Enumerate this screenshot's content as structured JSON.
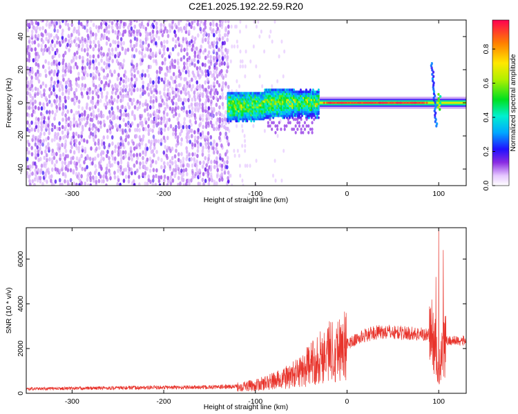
{
  "title": "C2E1.2025.192.22.59.R20",
  "chart_data": [
    {
      "type": "heatmap",
      "xlabel": "Height of straight line (km)",
      "ylabel": "Frequency (Hz)",
      "xlim": [
        -350,
        130
      ],
      "ylim": [
        -50,
        50
      ],
      "x_ticks": [
        -300,
        -200,
        -100,
        0,
        100
      ],
      "y_ticks": [
        -40,
        -20,
        0,
        20,
        40
      ],
      "colorbar": {
        "label": "Normalized spectral amplitude",
        "range": [
          0,
          0.97
        ],
        "ticks": [
          "0.0",
          "0.2",
          "0.4",
          "0.6",
          "0.8"
        ],
        "colormap": "white-purple-blue-cyan-green-yellow-red"
      },
      "features": [
        {
          "name": "broadband noise",
          "x_range": [
            -350,
            -130
          ],
          "y_range": [
            -50,
            50
          ],
          "amplitude": 0.1
        },
        {
          "name": "emerging signal",
          "x_range": [
            -130,
            -30
          ],
          "y_center": 0,
          "amplitude": 0.3
        },
        {
          "name": "narrow carrier line",
          "x_range": [
            -30,
            130
          ],
          "y_center": 0,
          "amplitude": 0.97
        },
        {
          "name": "spread near 100 km",
          "x_range": [
            90,
            103
          ],
          "y_range": [
            -15,
            23
          ],
          "amplitude": 0.25
        }
      ]
    },
    {
      "type": "line",
      "xlabel": "Height of straight line (km)",
      "ylabel": "SNR (10 * v/v)",
      "xlim": [
        -350,
        130
      ],
      "ylim": [
        0,
        7400
      ],
      "x_ticks": [
        -300,
        -200,
        -100,
        0,
        100
      ],
      "y_ticks": [
        0,
        2000,
        4000,
        6000
      ],
      "color": "#e8332b",
      "series": [
        {
          "x": [
            -350,
            -300,
            -250,
            -200,
            -150,
            -120,
            -100,
            -90,
            -80,
            -70,
            -60,
            -50,
            -40,
            -30,
            -20,
            -10,
            0,
            10,
            20,
            30,
            40,
            60,
            80,
            90,
            95,
            98,
            100,
            102,
            104,
            106,
            110,
            120,
            130
          ],
          "values": [
            200,
            220,
            240,
            260,
            270,
            300,
            350,
            450,
            550,
            650,
            800,
            1000,
            1300,
            1600,
            1900,
            2000,
            2200,
            2400,
            2600,
            2700,
            2750,
            2700,
            2650,
            2600,
            2400,
            1500,
            800,
            1500,
            2400,
            2300,
            2350,
            2350,
            2350
          ],
          "peaks": [
            [
              -20,
              2950
            ],
            [
              97,
              5200
            ],
            [
              100,
              7400
            ],
            [
              105,
              6400
            ]
          ]
        }
      ]
    }
  ]
}
